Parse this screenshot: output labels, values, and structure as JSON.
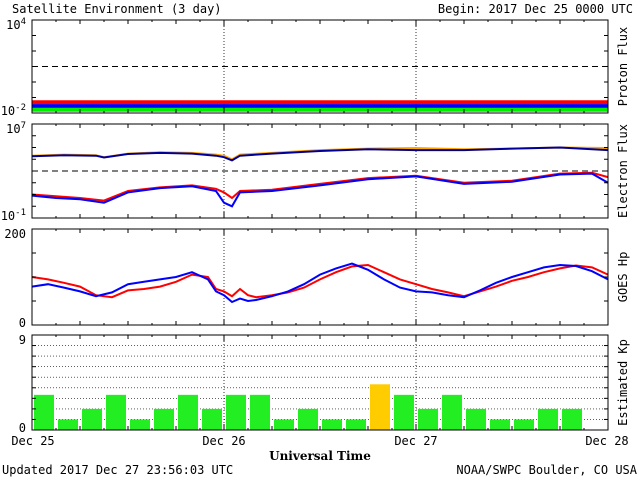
{
  "header": {
    "title": "Satellite Environment (3 day)",
    "begin": "Begin:  2017 Dec 25 0000 UTC"
  },
  "footer": {
    "updated": "Updated 2017 Dec 27 23:56:03 UTC",
    "credit": "NOAA/SWPC Boulder, CO USA"
  },
  "x_axis": {
    "title": "Universal Time",
    "ticks": [
      "Dec 25",
      "Dec 26",
      "Dec 27",
      "Dec 28"
    ]
  },
  "colors": {
    "red": "#ff0000",
    "blue": "#0000ff",
    "green": "#00ee00",
    "orange": "#ffa500",
    "navy": "#000099",
    "kp_green": "#22ee22",
    "kp_yellow": "#ffcc00"
  },
  "chart_data": [
    {
      "type": "line",
      "name": "proton-flux",
      "ylabel": "Proton Flux",
      "y_scale": "log",
      "yticks": [
        "10^4",
        "10^-2"
      ],
      "ylim": [
        0.01,
        10000
      ],
      "threshold": 10,
      "x_unit": "hours since 2017 Dec 25 0000 UTC",
      "series": [
        {
          "color": "red",
          "x": [
            0,
            72
          ],
          "y": [
            0.05,
            0.05
          ]
        },
        {
          "color": "blue",
          "x": [
            0,
            72
          ],
          "y": [
            0.028,
            0.028
          ]
        },
        {
          "color": "green",
          "x": [
            0,
            72
          ],
          "y": [
            0.016,
            0.016
          ]
        }
      ]
    },
    {
      "type": "line",
      "name": "electron-flux",
      "ylabel": "Electron Flux",
      "y_scale": "log",
      "yticks": [
        "10^7",
        "10^-1"
      ],
      "ylim": [
        0.1,
        10000000
      ],
      "threshold": 1000,
      "series": [
        {
          "color": "orange",
          "x": [
            0,
            4,
            8,
            9,
            12,
            16,
            20,
            23,
            24,
            25,
            26,
            30,
            36,
            42,
            48,
            54,
            60,
            66,
            72
          ],
          "y": [
            20000,
            25000,
            22000,
            15000,
            30000,
            40000,
            35000,
            25000,
            20000,
            10000,
            25000,
            35000,
            60000,
            80000,
            90000,
            70000,
            80000,
            100000,
            90000
          ]
        },
        {
          "color": "navy",
          "x": [
            0,
            4,
            8,
            9,
            12,
            16,
            20,
            23,
            24,
            25,
            26,
            30,
            36,
            42,
            48,
            54,
            60,
            66,
            72
          ],
          "y": [
            18000,
            22000,
            20000,
            14000,
            28000,
            35000,
            30000,
            20000,
            15000,
            8000,
            20000,
            30000,
            50000,
            70000,
            60000,
            60000,
            80000,
            100000,
            60000
          ]
        },
        {
          "color": "red",
          "x": [
            0,
            3,
            6,
            9,
            12,
            16,
            20,
            23,
            24,
            25,
            26,
            30,
            36,
            42,
            48,
            54,
            60,
            66,
            70,
            72
          ],
          "y": [
            10,
            7,
            5,
            3,
            20,
            40,
            60,
            30,
            15,
            5,
            20,
            25,
            80,
            250,
            400,
            100,
            150,
            600,
            700,
            300
          ]
        },
        {
          "color": "blue",
          "x": [
            0,
            3,
            6,
            9,
            12,
            16,
            20,
            23,
            24,
            25,
            26,
            30,
            36,
            42,
            48,
            54,
            60,
            66,
            70,
            72
          ],
          "y": [
            8,
            5,
            4,
            2,
            15,
            35,
            50,
            20,
            2,
            1,
            15,
            20,
            60,
            200,
            350,
            80,
            120,
            500,
            600,
            100
          ]
        }
      ]
    },
    {
      "type": "line",
      "name": "goes-hp",
      "ylabel": "GOES Hp",
      "yticks": [
        "200",
        "0"
      ],
      "ylim": [
        0,
        200
      ],
      "series": [
        {
          "color": "red",
          "x": [
            0,
            2,
            4,
            6,
            8,
            10,
            12,
            14,
            16,
            18,
            20,
            22,
            23,
            24,
            25,
            26,
            27,
            28,
            30,
            32,
            34,
            36,
            38,
            40,
            42,
            44,
            46,
            48,
            50,
            52,
            54,
            56,
            58,
            60,
            62,
            64,
            66,
            68,
            70,
            72
          ],
          "y": [
            100,
            95,
            88,
            80,
            62,
            58,
            72,
            75,
            80,
            90,
            105,
            100,
            75,
            70,
            60,
            75,
            62,
            58,
            62,
            68,
            78,
            95,
            110,
            122,
            125,
            110,
            95,
            85,
            75,
            68,
            60,
            70,
            80,
            92,
            100,
            110,
            118,
            124,
            120,
            105
          ]
        },
        {
          "color": "blue",
          "x": [
            0,
            2,
            4,
            6,
            8,
            10,
            12,
            14,
            16,
            18,
            20,
            22,
            23,
            24,
            25,
            26,
            27,
            28,
            30,
            32,
            34,
            36,
            38,
            40,
            42,
            44,
            46,
            48,
            50,
            52,
            54,
            56,
            58,
            60,
            62,
            64,
            66,
            68,
            70,
            72
          ],
          "y": [
            80,
            85,
            78,
            70,
            60,
            68,
            85,
            90,
            95,
            100,
            110,
            95,
            70,
            62,
            48,
            55,
            50,
            52,
            60,
            70,
            85,
            105,
            118,
            128,
            115,
            95,
            78,
            70,
            68,
            62,
            58,
            72,
            88,
            100,
            110,
            120,
            125,
            123,
            112,
            95
          ]
        }
      ]
    },
    {
      "type": "bar",
      "name": "estimated-kp",
      "ylabel": "Estimated Kp",
      "yticks": [
        "9",
        "0"
      ],
      "ylim": [
        0,
        9
      ],
      "bar_width_hours": 3,
      "x": [
        1.5,
        4.5,
        7.5,
        10.5,
        13.5,
        16.5,
        19.5,
        22.5,
        25.5,
        28.5,
        31.5,
        34.5,
        37.5,
        40.5,
        43.5,
        46.5,
        49.5,
        52.5,
        55.5,
        58.5,
        61.5,
        64.5,
        67.5,
        70.5
      ],
      "values": [
        3.33,
        1,
        2,
        3.33,
        1,
        2,
        3.33,
        2,
        3.33,
        3.33,
        1,
        2,
        1,
        1,
        4.33,
        3.33,
        2,
        3.33,
        2,
        1,
        1,
        2,
        2,
        0
      ],
      "colors": [
        "kp_green",
        "kp_green",
        "kp_green",
        "kp_green",
        "kp_green",
        "kp_green",
        "kp_green",
        "kp_green",
        "kp_green",
        "kp_green",
        "kp_green",
        "kp_green",
        "kp_green",
        "kp_green",
        "kp_yellow",
        "kp_green",
        "kp_green",
        "kp_green",
        "kp_green",
        "kp_green",
        "kp_green",
        "kp_green",
        "kp_green",
        "kp_green"
      ]
    }
  ]
}
